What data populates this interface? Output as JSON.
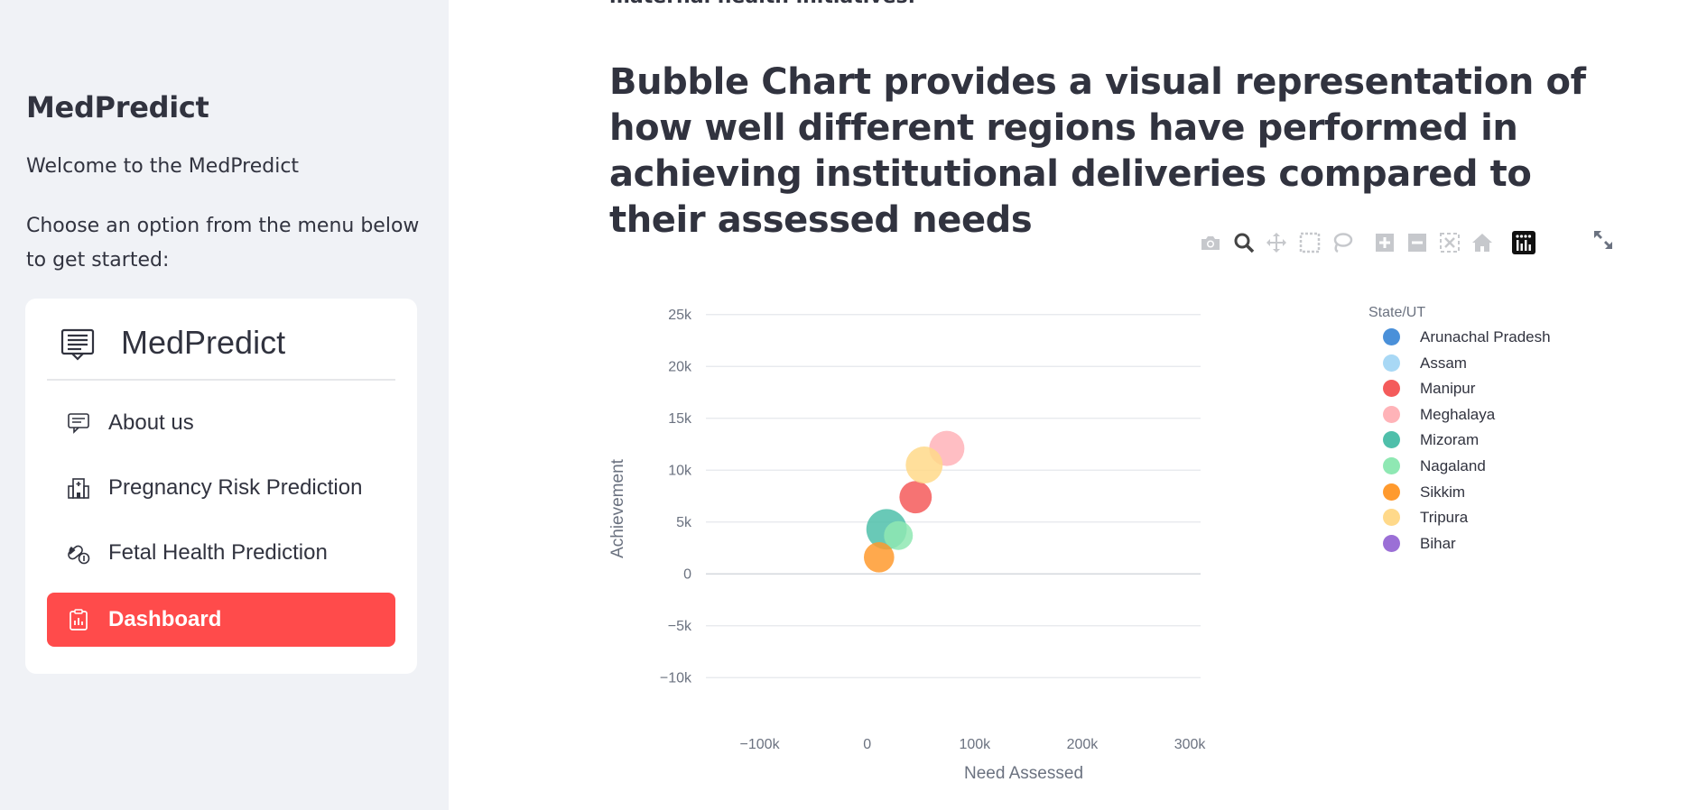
{
  "sidebar": {
    "title": "MedPredict",
    "welcome": "Welcome to the MedPredict",
    "choose_text": "Choose an option from the menu below to get started:",
    "menu": {
      "title": "MedPredict",
      "items": [
        {
          "label": "About us",
          "icon": "chat-icon",
          "active": false
        },
        {
          "label": "Pregnancy Risk Prediction",
          "icon": "hospital-icon",
          "active": false
        },
        {
          "label": "Fetal Health Prediction",
          "icon": "capsule-icon",
          "active": false
        },
        {
          "label": "Dashboard",
          "icon": "clipboard-data-icon",
          "active": true
        }
      ]
    },
    "accent_color": "#ff4b4b"
  },
  "main": {
    "top_cut_text": "maternal health initiatives.",
    "heading": "Bubble Chart provides a visual representation of how well different regions have performed in achieving institutional deliveries compared to their assessed needs"
  },
  "modebar": {
    "buttons": [
      "camera-icon",
      "zoom-icon",
      "pan-icon",
      "box-select-icon",
      "lasso-icon",
      "zoom-in-icon",
      "zoom-out-icon",
      "autoscale-icon",
      "reset-axes-icon",
      "plotly-logo-icon"
    ],
    "expand_icon": "fullscreen-icon"
  },
  "chart_data": {
    "type": "scatter",
    "xlabel": "Need Assessed",
    "ylabel": "Achievement",
    "xlim": [
      -150000,
      310000
    ],
    "ylim": [
      -12500,
      27500
    ],
    "x_ticks": [
      "−100k",
      "0",
      "100k",
      "200k",
      "300k"
    ],
    "x_tick_values": [
      -100000,
      0,
      100000,
      200000,
      300000
    ],
    "y_ticks": [
      "25k",
      "20k",
      "15k",
      "10k",
      "5k",
      "0",
      "−5k",
      "−10k"
    ],
    "y_tick_values": [
      25000,
      20000,
      15000,
      10000,
      5000,
      0,
      -5000,
      -10000
    ],
    "grid": true,
    "legend_title": "State/UT",
    "legend_position": "right",
    "series": [
      {
        "name": "Arunachal Pradesh",
        "color": "#4a90d9",
        "points": []
      },
      {
        "name": "Assam",
        "color": "#a8d8f5",
        "points": []
      },
      {
        "name": "Manipur",
        "color": "#f45b5b",
        "points": [
          {
            "x": 45000,
            "y": 7400,
            "size": 0.62
          }
        ]
      },
      {
        "name": "Meghalaya",
        "color": "#ffb3b8",
        "points": [
          {
            "x": 74000,
            "y": 12100,
            "size": 0.72
          }
        ]
      },
      {
        "name": "Mizoram",
        "color": "#4fbfaa",
        "points": [
          {
            "x": 18000,
            "y": 4300,
            "size": 0.9
          }
        ]
      },
      {
        "name": "Nagaland",
        "color": "#8fe8b3",
        "points": [
          {
            "x": 29000,
            "y": 3700,
            "size": 0.5
          }
        ]
      },
      {
        "name": "Sikkim",
        "color": "#ff9a2e",
        "points": [
          {
            "x": 11000,
            "y": 1600,
            "size": 0.55
          }
        ]
      },
      {
        "name": "Tripura",
        "color": "#ffd98a",
        "points": [
          {
            "x": 53000,
            "y": 10500,
            "size": 0.78
          }
        ]
      },
      {
        "name": "Bihar",
        "color": "#9b6fd6",
        "points": []
      }
    ]
  }
}
